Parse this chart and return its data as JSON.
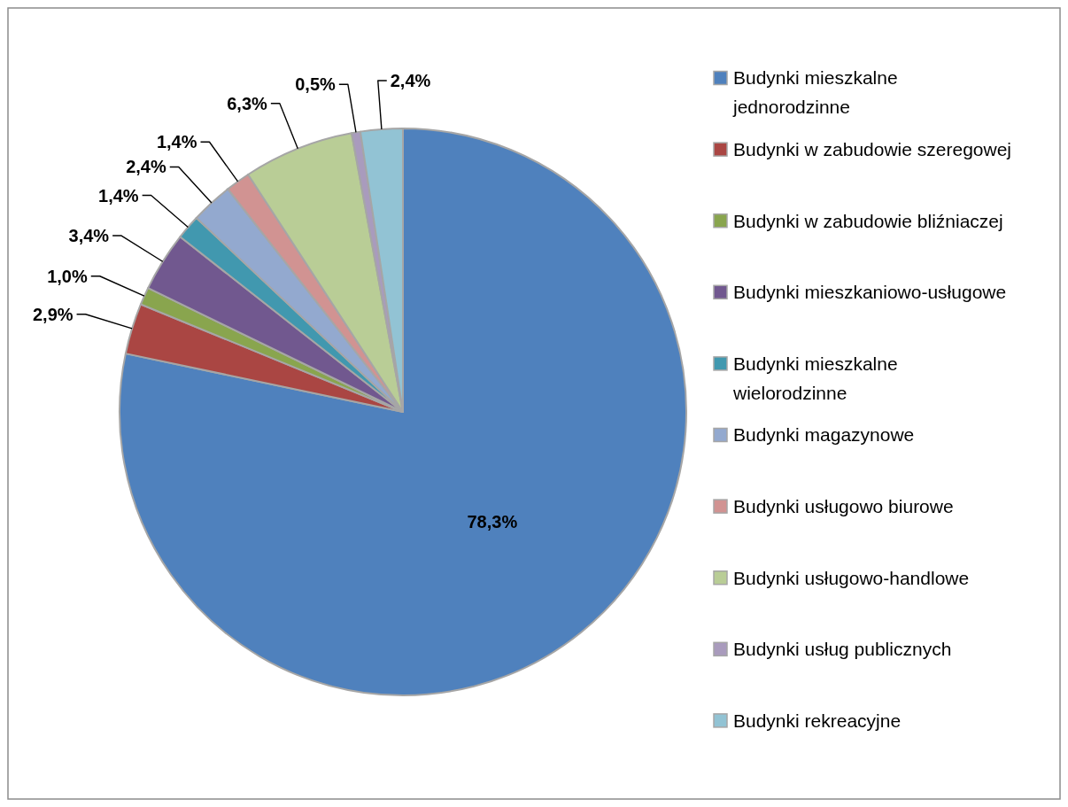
{
  "chart_data": {
    "type": "pie",
    "categories": [
      "Budynki mieszkalne jednorodzinne",
      "Budynki w zabudowie szeregowej",
      "Budynki w zabudowie bliźniaczej",
      "Budynki mieszkaniowo-usługowe",
      "Budynki mieszkalne wielorodzinne",
      "Budynki magazynowe",
      "Budynki usługowo biurowe",
      "Budynki usługowo-handlowe",
      "Budynki usług publicznych",
      "Budynki rekreacyjne"
    ],
    "values": [
      78.3,
      2.9,
      1.0,
      3.4,
      1.4,
      2.4,
      1.4,
      6.3,
      0.5,
      2.4
    ],
    "colors": [
      "#4f81bd",
      "#aa4643",
      "#89a54e",
      "#71588f",
      "#4198af",
      "#93a9cf",
      "#d19392",
      "#b9cd96",
      "#a99bbd",
      "#92c3d4"
    ],
    "value_labels": [
      "78,3%",
      "2,9%",
      "1,0%",
      "3,4%",
      "1,4%",
      "2,4%",
      "1,4%",
      "6,3%",
      "0,5%",
      "2,4%"
    ],
    "legend": "right"
  }
}
